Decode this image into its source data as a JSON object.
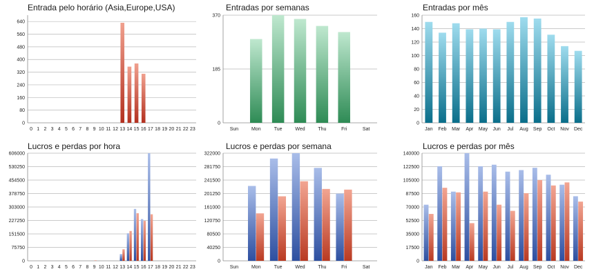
{
  "colors": {
    "red_top": "#f0a08e",
    "red_bottom": "#b3301f",
    "green_top": "#bfe8cf",
    "green_bottom": "#2e8b55",
    "teal_top": "#9fdcee",
    "teal_bottom": "#0a6e8a",
    "blue_top": "#a9bde9",
    "blue_bottom": "#2d4fa0",
    "orange_top": "#f2a592",
    "orange_bottom": "#b93a22"
  },
  "chart_data": [
    {
      "type": "bar",
      "title": "Entrada pelo horário (Asia,Europe,USA)",
      "categories": [
        "0",
        "1",
        "2",
        "3",
        "4",
        "5",
        "6",
        "7",
        "8",
        "9",
        "10",
        "11",
        "12",
        "13",
        "14",
        "15",
        "16",
        "17",
        "18",
        "19",
        "20",
        "21",
        "22",
        "23"
      ],
      "y_ticks": [
        "0",
        "80",
        "160",
        "240",
        "320",
        "400",
        "480",
        "560",
        "640"
      ],
      "ylim": [
        0,
        680
      ],
      "series": [
        {
          "color": "red",
          "values": [
            0,
            0,
            0,
            0,
            0,
            0,
            0,
            0,
            0,
            0,
            0,
            0,
            0,
            632,
            355,
            375,
            310,
            0,
            0,
            0,
            0,
            0,
            0,
            0
          ]
        }
      ]
    },
    {
      "type": "bar",
      "title": "Entradas por semanas",
      "categories": [
        "Sun",
        "Mon",
        "Tue",
        "Wed",
        "Thu",
        "Fri",
        "Sat"
      ],
      "y_ticks": [
        "0",
        "185",
        "370"
      ],
      "ylim": [
        0,
        370
      ],
      "series": [
        {
          "color": "green",
          "values": [
            0,
            288,
            370,
            357,
            333,
            312,
            0
          ]
        }
      ]
    },
    {
      "type": "bar",
      "title": "Entradas por mês",
      "categories": [
        "Jan",
        "Feb",
        "Mar",
        "Apr",
        "May",
        "Jun",
        "Jul",
        "Aug",
        "Sep",
        "Oct",
        "Nov",
        "Dec"
      ],
      "y_ticks": [
        "0",
        "20",
        "40",
        "60",
        "80",
        "100",
        "120",
        "140",
        "160"
      ],
      "ylim": [
        0,
        160
      ],
      "series": [
        {
          "color": "teal",
          "values": [
            150,
            134,
            148,
            139,
            140,
            139,
            150,
            157,
            155,
            131,
            114,
            107
          ]
        }
      ]
    },
    {
      "type": "bar",
      "title": "Lucros e perdas por hora",
      "categories": [
        "0",
        "1",
        "2",
        "3",
        "4",
        "5",
        "6",
        "7",
        "8",
        "9",
        "10",
        "11",
        "12",
        "13",
        "14",
        "15",
        "16",
        "17",
        "18",
        "19",
        "20",
        "21",
        "22",
        "23"
      ],
      "y_ticks": [
        "0",
        "75750",
        "151500",
        "227250",
        "303000",
        "378750",
        "454500",
        "530250",
        "606000"
      ],
      "ylim": [
        0,
        606000
      ],
      "series": [
        {
          "color": "blue",
          "values": [
            0,
            0,
            0,
            0,
            0,
            0,
            0,
            0,
            0,
            0,
            0,
            0,
            0,
            38000,
            155000,
            292000,
            235000,
            606000,
            0,
            0,
            0,
            0,
            0,
            0
          ]
        },
        {
          "color": "orange",
          "values": [
            0,
            0,
            0,
            0,
            0,
            0,
            0,
            0,
            0,
            2000,
            0,
            0,
            0,
            65000,
            168000,
            268000,
            225000,
            262000,
            0,
            0,
            0,
            0,
            0,
            0
          ]
        }
      ]
    },
    {
      "type": "bar",
      "title": "Lucros e perdas por semana",
      "categories": [
        "Sun",
        "Mon",
        "Tue",
        "Wed",
        "Thu",
        "Fri",
        "Sat"
      ],
      "y_ticks": [
        "0",
        "40250",
        "80500",
        "120750",
        "161000",
        "201250",
        "241500",
        "281750",
        "322000"
      ],
      "ylim": [
        0,
        322000
      ],
      "series": [
        {
          "color": "blue",
          "values": [
            0,
            224000,
            306000,
            322000,
            278000,
            201000,
            0
          ]
        },
        {
          "color": "orange",
          "values": [
            0,
            142000,
            193000,
            238000,
            215000,
            213000,
            0
          ]
        }
      ]
    },
    {
      "type": "bar",
      "title": "Lucros e perdas por mês",
      "categories": [
        "Jan",
        "Feb",
        "Mar",
        "Apr",
        "May",
        "Jun",
        "Jul",
        "Aug",
        "Sep",
        "Oct",
        "Nov",
        "Dec"
      ],
      "y_ticks": [
        "0",
        "17500",
        "35000",
        "52500",
        "70000",
        "87500",
        "105000",
        "122500",
        "140000"
      ],
      "ylim": [
        0,
        140000
      ],
      "series": [
        {
          "color": "blue",
          "values": [
            73000,
            123000,
            90000,
            140000,
            123000,
            125000,
            116000,
            118000,
            121000,
            112000,
            99000,
            84000
          ]
        },
        {
          "color": "orange",
          "values": [
            61000,
            95000,
            89000,
            49000,
            90000,
            73000,
            65000,
            88000,
            105000,
            98000,
            102000,
            77000
          ]
        }
      ]
    }
  ]
}
